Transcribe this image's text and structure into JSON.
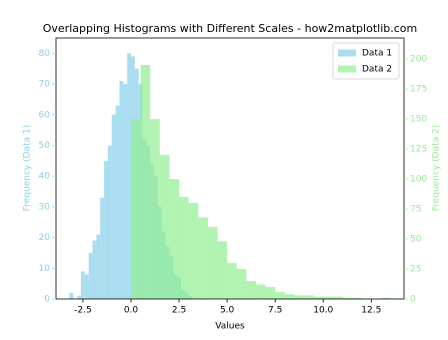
{
  "chart_data": {
    "type": "histogram",
    "title": "Overlapping Histograms with Different Scales - how2matplotlib.com",
    "xlabel": "Values",
    "ylabel": "Frequency (Data 1)",
    "y2label": "Frequency (Data 2)",
    "xlim": [
      -3.9,
      14.2
    ],
    "ylim": [
      0,
      85
    ],
    "y2lim": [
      0,
      217.5
    ],
    "xticks": [
      {
        "value": -2.5,
        "label": "-2.5"
      },
      {
        "value": 0,
        "label": "0.0"
      },
      {
        "value": 2.5,
        "label": "2.5"
      },
      {
        "value": 5,
        "label": "5.0"
      },
      {
        "value": 7.5,
        "label": "7.5"
      },
      {
        "value": 10,
        "label": "10.0"
      },
      {
        "value": 12.5,
        "label": "12.5"
      }
    ],
    "yticks": [
      0,
      10,
      20,
      30,
      40,
      50,
      60,
      70,
      80
    ],
    "y2ticks": [
      0,
      25,
      50,
      75,
      100,
      125,
      150,
      175,
      200
    ],
    "legend": "upper right",
    "series": [
      {
        "name": "Data 1",
        "color": "#87ceeb",
        "axis": "y",
        "bins": [
          -3.2,
          -3.0,
          -2.8,
          -2.6,
          -2.4,
          -2.2,
          -2.0,
          -1.8,
          -1.6,
          -1.4,
          -1.2,
          -1.0,
          -0.8,
          -0.6,
          -0.4,
          -0.2,
          0.0,
          0.2,
          0.4,
          0.6,
          0.8,
          1.0,
          1.2,
          1.4,
          1.6,
          1.8,
          2.0,
          2.2,
          2.4,
          2.6,
          2.8,
          3.0,
          3.2
        ],
        "values": [
          2,
          0,
          1,
          9,
          8,
          15,
          19,
          21,
          33,
          45,
          50,
          60,
          63,
          71,
          70,
          80,
          79,
          75,
          70,
          52,
          50,
          44,
          40,
          30,
          22,
          17,
          14,
          8,
          7,
          3,
          2,
          1
        ]
      },
      {
        "name": "Data 2",
        "color": "#90ee90",
        "axis": "y2",
        "bins": [
          0,
          0.5,
          1,
          1.5,
          2,
          2.5,
          3,
          3.5,
          4,
          4.5,
          5,
          5.5,
          6,
          6.5,
          7,
          7.5,
          8,
          8.5,
          9,
          9.5,
          10,
          10.5,
          11,
          11.5,
          12,
          12.5,
          13,
          13.5
        ],
        "values": [
          150,
          195,
          150,
          120,
          100,
          85,
          80,
          68,
          60,
          48,
          30,
          25,
          15,
          12,
          10,
          6,
          4,
          3,
          3,
          2,
          2,
          2,
          1,
          1,
          0,
          0,
          1
        ]
      }
    ]
  }
}
